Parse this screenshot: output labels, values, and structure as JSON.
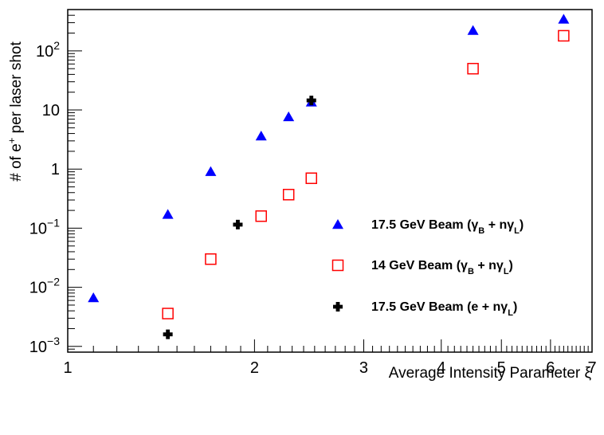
{
  "chart_data": {
    "type": "scatter",
    "title": "",
    "xlabel": "Average Intensity Parameter ξ",
    "ylabel": "# of e⁺ per laser shot",
    "x_scale": "log",
    "y_scale": "log",
    "xlim": [
      1,
      7
    ],
    "ylim": [
      0.0008,
      500
    ],
    "grid": false,
    "legend_position": "center-right",
    "x_ticks": [
      {
        "value": 1,
        "label": "1"
      },
      {
        "value": 2,
        "label": "2"
      },
      {
        "value": 3,
        "label": "3"
      },
      {
        "value": 4,
        "label": "4"
      },
      {
        "value": 5,
        "label": "5"
      },
      {
        "value": 6,
        "label": "6"
      },
      {
        "value": 7,
        "label": "7"
      }
    ],
    "y_ticks": [
      {
        "value": 0.001,
        "base": "10",
        "exp": "−3"
      },
      {
        "value": 0.01,
        "base": "10",
        "exp": "−2"
      },
      {
        "value": 0.1,
        "base": "10",
        "exp": "−1"
      },
      {
        "value": 1,
        "base": "1",
        "exp": ""
      },
      {
        "value": 10,
        "base": "10",
        "exp": ""
      },
      {
        "value": 100,
        "base": "10",
        "exp": "2"
      }
    ],
    "series": [
      {
        "name": "17.5 GeV Beam (γB + nγL)",
        "legend_label": {
          "a": "17.5 GeV Beam (γ",
          "sub1": "B",
          "b": " + nγ",
          "sub2": "L",
          "c": ")"
        },
        "marker": "triangle",
        "color": "#0000ff",
        "points": [
          [
            1.1,
            0.0066
          ],
          [
            1.45,
            0.17
          ],
          [
            1.7,
            0.9
          ],
          [
            2.05,
            3.6
          ],
          [
            2.27,
            7.6
          ],
          [
            2.47,
            13.5
          ],
          [
            4.5,
            220
          ],
          [
            6.3,
            340
          ]
        ]
      },
      {
        "name": "14 GeV Beam (γB + nγL)",
        "legend_label": {
          "a": "14 GeV Beam (γ",
          "sub1": "B",
          "b": " + nγ",
          "sub2": "L",
          "c": ")"
        },
        "marker": "open-square",
        "color": "#ff0000",
        "points": [
          [
            1.45,
            0.0036
          ],
          [
            1.7,
            0.03
          ],
          [
            2.05,
            0.16
          ],
          [
            2.27,
            0.37
          ],
          [
            2.47,
            0.7
          ],
          [
            4.5,
            50
          ],
          [
            6.3,
            180
          ]
        ]
      },
      {
        "name": "17.5 GeV Beam (e + nγL)",
        "legend_label": {
          "a": "17.5 GeV Beam (e + nγ",
          "sub1": "",
          "b": "",
          "sub2": "L",
          "c": ")"
        },
        "marker": "cross",
        "color": "#000000",
        "points": [
          [
            1.45,
            0.0016
          ],
          [
            1.88,
            0.115
          ],
          [
            2.47,
            14.5
          ]
        ]
      }
    ]
  }
}
